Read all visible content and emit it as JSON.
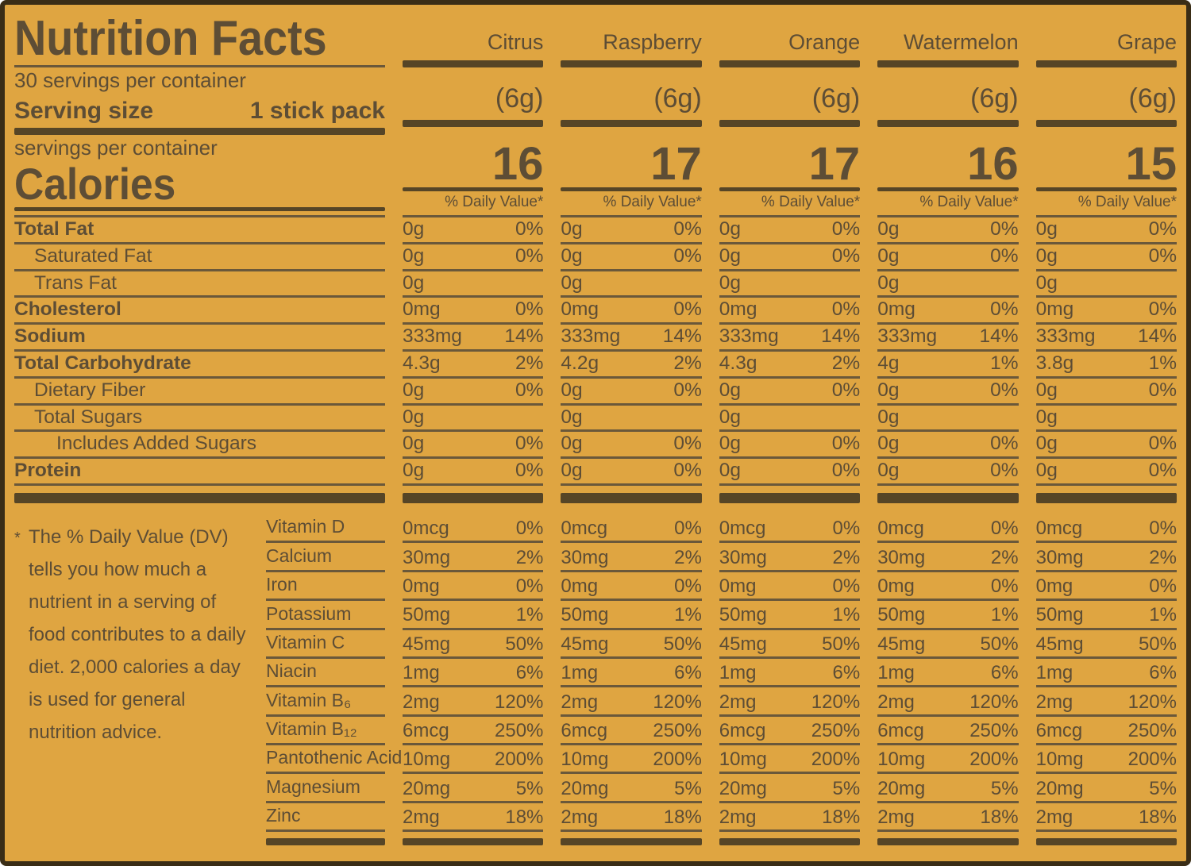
{
  "label": {
    "title": "Nutrition Facts",
    "servings_line": "30 servings per container",
    "serving_size_label": "Serving size",
    "serving_size_value": "1 stick pack",
    "servings_per_container_label": "servings per container",
    "calories_label": "Calories",
    "daily_value_header": "% Daily Value*",
    "footnote_marker": "*",
    "footnote": "The % Daily Value (DV) tells you how much a nutrient in a serving of food contributes to a daily diet. 2,000 calories a day is used for general nutrition advice."
  },
  "colors": {
    "background": "#dfa541",
    "text": "#5d4d35",
    "rule": "#6a583a",
    "bar": "#564526",
    "border": "#3a2d16"
  },
  "flavors": [
    {
      "name": "Citrus",
      "serving_weight": "(6g)",
      "calories": "16"
    },
    {
      "name": "Raspberry",
      "serving_weight": "(6g)",
      "calories": "17"
    },
    {
      "name": "Orange",
      "serving_weight": "(6g)",
      "calories": "17"
    },
    {
      "name": "Watermelon",
      "serving_weight": "(6g)",
      "calories": "16"
    },
    {
      "name": "Grape",
      "serving_weight": "(6g)",
      "calories": "15"
    }
  ],
  "nutrients": [
    {
      "label": "Total Fat",
      "bold": true,
      "indent": 0,
      "cells": [
        [
          "0g",
          "0%"
        ],
        [
          "0g",
          "0%"
        ],
        [
          "0g",
          "0%"
        ],
        [
          "0g",
          "0%"
        ],
        [
          "0g",
          "0%"
        ]
      ]
    },
    {
      "label": "Saturated Fat",
      "bold": false,
      "indent": 1,
      "cells": [
        [
          "0g",
          "0%"
        ],
        [
          "0g",
          "0%"
        ],
        [
          "0g",
          "0%"
        ],
        [
          "0g",
          "0%"
        ],
        [
          "0g",
          "0%"
        ]
      ]
    },
    {
      "label": "Trans Fat",
      "bold": false,
      "indent": 1,
      "cells": [
        [
          "0g",
          ""
        ],
        [
          "0g",
          ""
        ],
        [
          "0g",
          ""
        ],
        [
          "0g",
          ""
        ],
        [
          "0g",
          ""
        ]
      ]
    },
    {
      "label": "Cholesterol",
      "bold": true,
      "indent": 0,
      "cells": [
        [
          "0mg",
          "0%"
        ],
        [
          "0mg",
          "0%"
        ],
        [
          "0mg",
          "0%"
        ],
        [
          "0mg",
          "0%"
        ],
        [
          "0mg",
          "0%"
        ]
      ]
    },
    {
      "label": "Sodium",
      "bold": true,
      "indent": 0,
      "cells": [
        [
          "333mg",
          "14%"
        ],
        [
          "333mg",
          "14%"
        ],
        [
          "333mg",
          "14%"
        ],
        [
          "333mg",
          "14%"
        ],
        [
          "333mg",
          "14%"
        ]
      ]
    },
    {
      "label": "Total Carbohydrate",
      "bold": true,
      "indent": 0,
      "cells": [
        [
          "4.3g",
          "2%"
        ],
        [
          "4.2g",
          "2%"
        ],
        [
          "4.3g",
          "2%"
        ],
        [
          "4g",
          "1%"
        ],
        [
          "3.8g",
          "1%"
        ]
      ]
    },
    {
      "label": "Dietary Fiber",
      "bold": false,
      "indent": 1,
      "cells": [
        [
          "0g",
          "0%"
        ],
        [
          "0g",
          "0%"
        ],
        [
          "0g",
          "0%"
        ],
        [
          "0g",
          "0%"
        ],
        [
          "0g",
          "0%"
        ]
      ]
    },
    {
      "label": "Total Sugars",
      "bold": false,
      "indent": 1,
      "cells": [
        [
          "0g",
          ""
        ],
        [
          "0g",
          ""
        ],
        [
          "0g",
          ""
        ],
        [
          "0g",
          ""
        ],
        [
          "0g",
          ""
        ]
      ]
    },
    {
      "label": "Includes Added Sugars",
      "bold": false,
      "indent": 2,
      "cells": [
        [
          "0g",
          "0%"
        ],
        [
          "0g",
          "0%"
        ],
        [
          "0g",
          "0%"
        ],
        [
          "0g",
          "0%"
        ],
        [
          "0g",
          "0%"
        ]
      ]
    },
    {
      "label": "Protein",
      "bold": true,
      "indent": 0,
      "cells": [
        [
          "0g",
          "0%"
        ],
        [
          "0g",
          "0%"
        ],
        [
          "0g",
          "0%"
        ],
        [
          "0g",
          "0%"
        ],
        [
          "0g",
          "0%"
        ]
      ]
    }
  ],
  "vitamins": [
    {
      "label": "Vitamin D",
      "amount": "0mcg",
      "dv": "0%"
    },
    {
      "label": "Calcium",
      "amount": "30mg",
      "dv": "2%"
    },
    {
      "label": "Iron",
      "amount": "0mg",
      "dv": "0%"
    },
    {
      "label": "Potassium",
      "amount": "50mg",
      "dv": "1%"
    },
    {
      "label": "Vitamin C",
      "amount": "45mg",
      "dv": "50%"
    },
    {
      "label": "Niacin",
      "amount": "1mg",
      "dv": "6%"
    },
    {
      "label": "Vitamin B₆",
      "amount": "2mg",
      "dv": "120%"
    },
    {
      "label": "Vitamin B₁₂",
      "amount": "6mcg",
      "dv": "250%"
    },
    {
      "label": "Pantothenic Acid",
      "amount": "10mg",
      "dv": "200%"
    },
    {
      "label": "Magnesium",
      "amount": "20mg",
      "dv": "5%"
    },
    {
      "label": "Zinc",
      "amount": "2mg",
      "dv": "18%"
    }
  ]
}
